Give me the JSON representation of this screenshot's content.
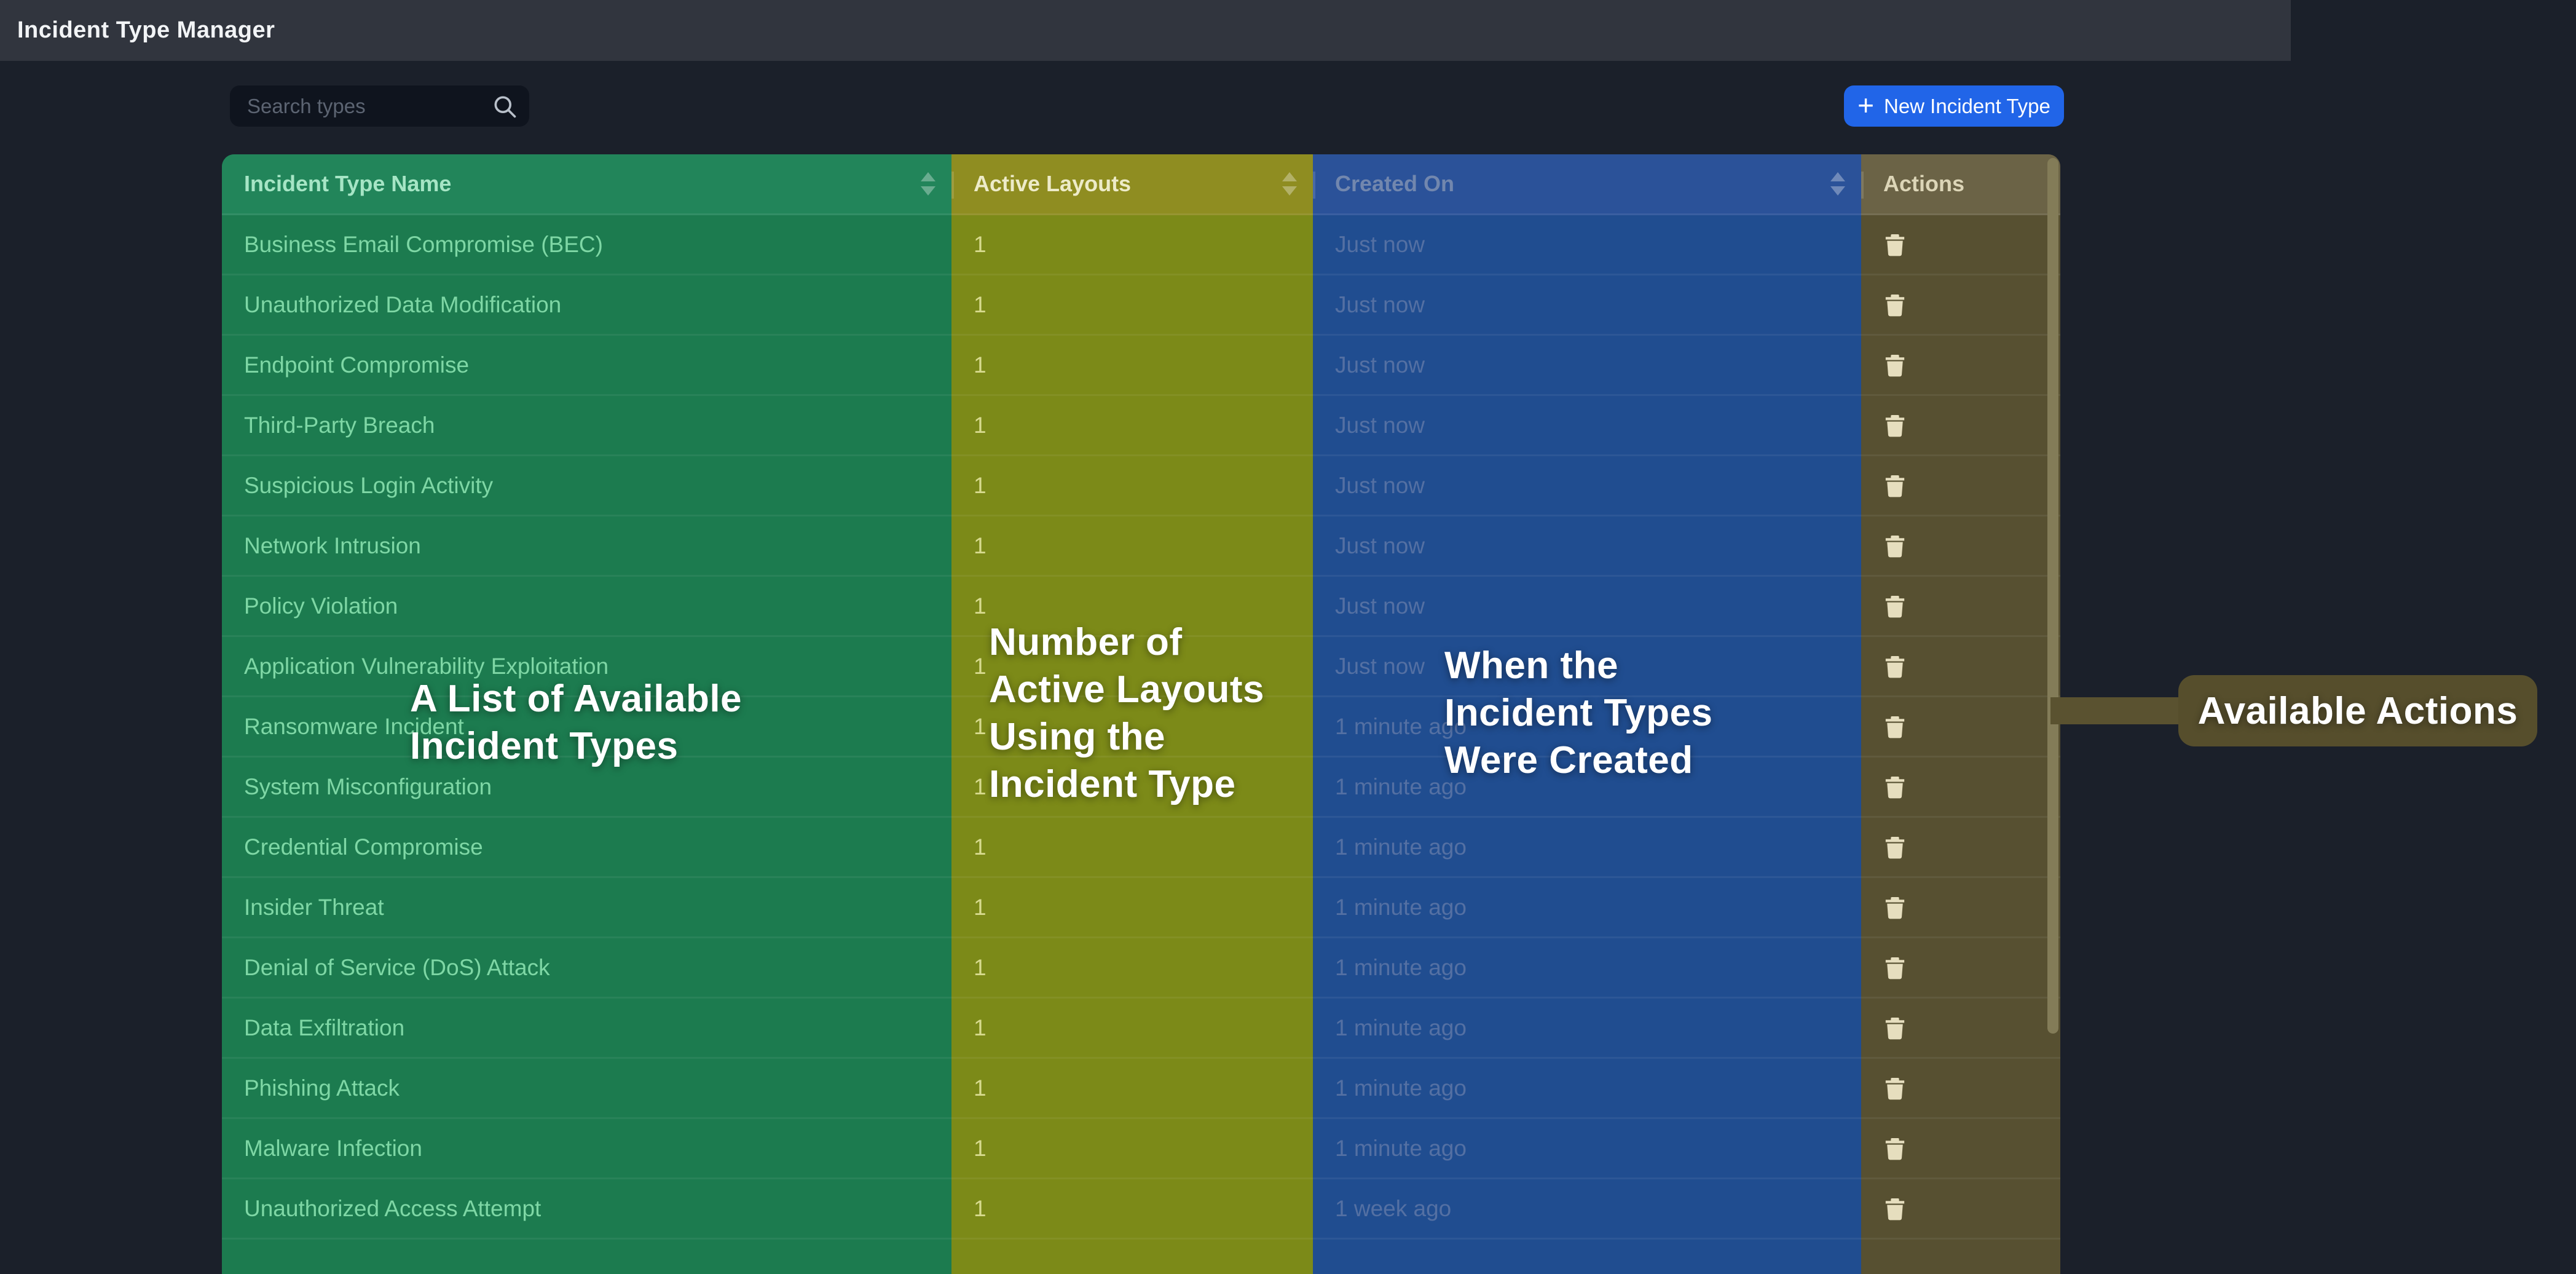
{
  "header": {
    "title": "Incident Type Manager"
  },
  "toolbar": {
    "search_placeholder": "Search types",
    "search_icon": "magnifier",
    "new_button_plus": "+",
    "new_button_label": "New Incident Type"
  },
  "table": {
    "columns": [
      {
        "label": "Incident Type Name",
        "sortable": true
      },
      {
        "label": "Active Layouts",
        "sortable": true
      },
      {
        "label": "Created On",
        "sortable": true
      },
      {
        "label": "Actions",
        "sortable": false
      }
    ],
    "rows": [
      {
        "name": "Business Email Compromise (BEC)",
        "active_layouts": "1",
        "created_on": "Just now"
      },
      {
        "name": "Unauthorized Data Modification",
        "active_layouts": "1",
        "created_on": "Just now"
      },
      {
        "name": "Endpoint Compromise",
        "active_layouts": "1",
        "created_on": "Just now"
      },
      {
        "name": "Third-Party Breach",
        "active_layouts": "1",
        "created_on": "Just now"
      },
      {
        "name": "Suspicious Login Activity",
        "active_layouts": "1",
        "created_on": "Just now"
      },
      {
        "name": "Network Intrusion",
        "active_layouts": "1",
        "created_on": "Just now"
      },
      {
        "name": "Policy Violation",
        "active_layouts": "1",
        "created_on": "Just now"
      },
      {
        "name": "Application Vulnerability Exploitation",
        "active_layouts": "1",
        "created_on": "Just now"
      },
      {
        "name": "Ransomware Incident",
        "active_layouts": "1",
        "created_on": "1 minute ago"
      },
      {
        "name": "System Misconfiguration",
        "active_layouts": "1",
        "created_on": "1 minute ago"
      },
      {
        "name": "Credential Compromise",
        "active_layouts": "1",
        "created_on": "1 minute ago"
      },
      {
        "name": "Insider Threat",
        "active_layouts": "1",
        "created_on": "1 minute ago"
      },
      {
        "name": "Denial of Service (DoS) Attack",
        "active_layouts": "1",
        "created_on": "1 minute ago"
      },
      {
        "name": "Data Exfiltration",
        "active_layouts": "1",
        "created_on": "1 minute ago"
      },
      {
        "name": "Phishing Attack",
        "active_layouts": "1",
        "created_on": "1 minute ago"
      },
      {
        "name": "Malware Infection",
        "active_layouts": "1",
        "created_on": "1 minute ago"
      },
      {
        "name": "Unauthorized Access Attempt",
        "active_layouts": "1",
        "created_on": "1 week ago"
      }
    ],
    "row_action_icon": "trash"
  },
  "annotations": {
    "name_column": {
      "lines": [
        "A List of Available",
        "Incident Types"
      ]
    },
    "layouts_column": {
      "lines": [
        "Number of",
        "Active Layouts",
        "Using the",
        "Incident Type"
      ]
    },
    "created_column": {
      "lines": [
        "When the",
        "Incident Types",
        "Were Created"
      ]
    },
    "actions_column": {
      "label": "Available Actions"
    }
  },
  "colors": {
    "accent_blue_button": "#2165e8",
    "topbar": "#31353e",
    "page_background": "#1b202a",
    "overlay_green": "#1c7b4f",
    "overlay_yellow": "#7c8a18",
    "overlay_blue": "#204d90",
    "overlay_olive": "#575031",
    "annotation_label_background": "#564e2c"
  }
}
